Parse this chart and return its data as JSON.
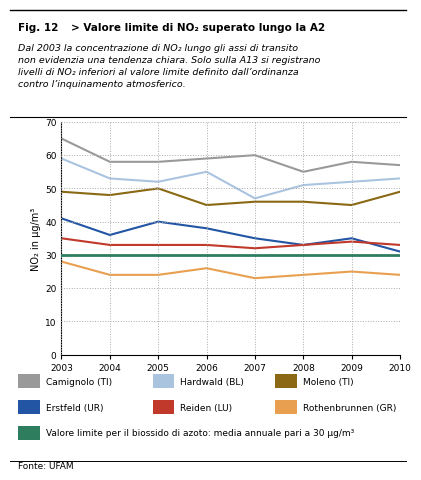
{
  "title_fig": "Fig. 12",
  "title_main": " > Valore limite di NO₂ superato lungo la A2",
  "subtitle": "Dal 2003 la concentrazione di NO₂ lungo gli assi di transito\nnon evidenzia una tendenza chiara. Solo sulla A13 si registrano\nlivelli di NO₂ inferiori al valore limite definito dall’ordinanza\ncontro l’inquinamento atmosferico.",
  "ylabel": "NO₂ in µg/m³",
  "fonte": "Fonte: UFAM",
  "years": [
    2003,
    2004,
    2005,
    2006,
    2007,
    2008,
    2009,
    2010
  ],
  "series": {
    "Camignolo (TI)": {
      "values": [
        65,
        58,
        58,
        59,
        60,
        55,
        58,
        57
      ],
      "color": "#999999",
      "lw": 1.5
    },
    "Hardwald (BL)": {
      "values": [
        59,
        53,
        52,
        55,
        47,
        51,
        52,
        53
      ],
      "color": "#aac4e0",
      "lw": 1.5
    },
    "Moleno (TI)": {
      "values": [
        49,
        48,
        50,
        45,
        46,
        46,
        45,
        49
      ],
      "color": "#8B6914",
      "lw": 1.5
    },
    "Erstfeld (UR)": {
      "values": [
        41,
        36,
        40,
        38,
        35,
        33,
        35,
        31
      ],
      "color": "#2255a4",
      "lw": 1.5
    },
    "Reiden (LU)": {
      "values": [
        35,
        33,
        33,
        33,
        32,
        33,
        34,
        33
      ],
      "color": "#c0392b",
      "lw": 1.5
    },
    "Rothenbrunnen (GR)": {
      "values": [
        28,
        24,
        24,
        26,
        23,
        24,
        25,
        24
      ],
      "color": "#e8a050",
      "lw": 1.5
    }
  },
  "limit_value": 30,
  "limit_color": "#2e7d5e",
  "limit_label": "Valore limite per il biossido di azoto: media annuale pari a 30 µg/m³",
  "ylim": [
    0,
    70
  ],
  "yticks": [
    0,
    10,
    20,
    30,
    40,
    50,
    60,
    70
  ],
  "bg_color": "#ffffff",
  "grid_color": "#aaaaaa",
  "legend_items_row1": [
    "Camignolo (TI)",
    "Hardwald (BL)",
    "Moleno (TI)"
  ],
  "legend_items_row2": [
    "Erstfeld (UR)",
    "Reiden (LU)",
    "Rothenbrunnen (GR)"
  ],
  "legend_colors_row1": [
    "#999999",
    "#aac4e0",
    "#8B6914"
  ],
  "legend_colors_row2": [
    "#2255a4",
    "#c0392b",
    "#e8a050"
  ]
}
